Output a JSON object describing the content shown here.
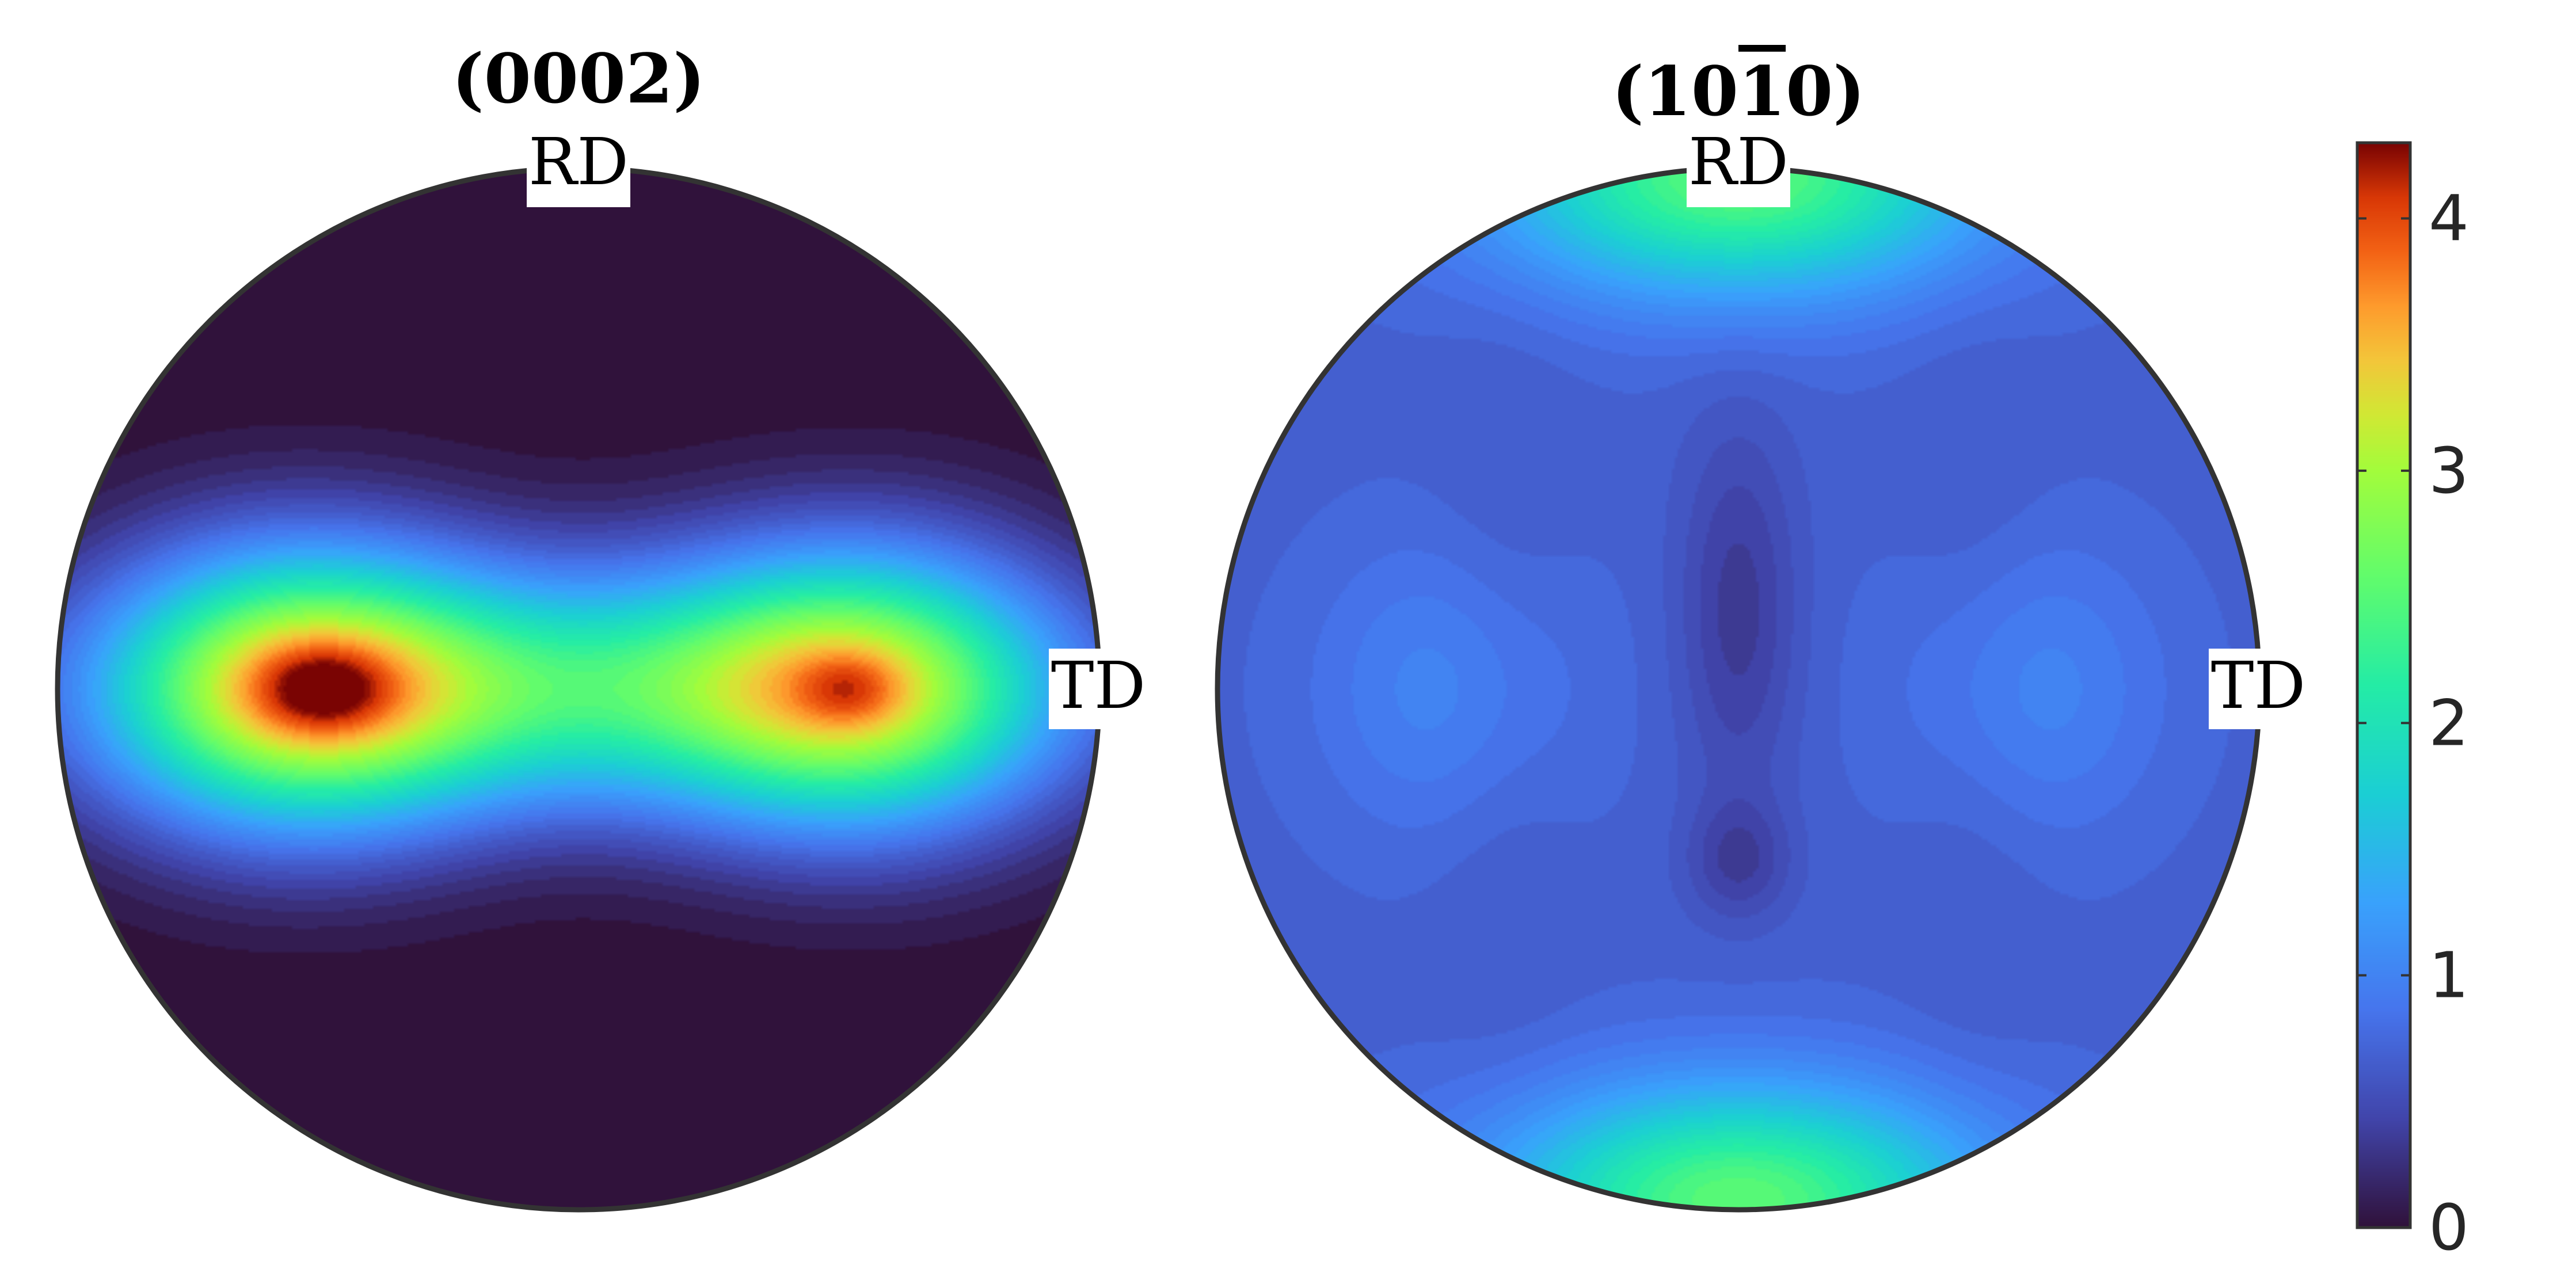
{
  "chart_data": [
    {
      "type": "heatmap",
      "title": "(0002)",
      "title_base": "0002",
      "title_overbar_digits": [],
      "direction_labels": {
        "top": "RD",
        "right": "TD"
      },
      "value_range": [
        0,
        4.3
      ],
      "blobs": [
        {
          "x": -0.54,
          "y": 0.0,
          "sx": 0.26,
          "sy": 0.19,
          "v": 2.7
        },
        {
          "x": 0.54,
          "y": 0.0,
          "sx": 0.26,
          "sy": 0.19,
          "v": 2.45
        },
        {
          "x": 0.0,
          "y": 0.0,
          "sx": 0.55,
          "sy": 0.16,
          "v": 1.95
        },
        {
          "x": -0.49,
          "y": 0.0,
          "sx": 0.09,
          "sy": 0.06,
          "v": 0.7
        },
        {
          "x": 0.52,
          "y": 0.0,
          "sx": 0.07,
          "sy": 0.05,
          "v": 0.5
        }
      ]
    },
    {
      "type": "heatmap",
      "title": "(10̅ 10)",
      "title_base": "1010",
      "title_overbar_digits": [
        2
      ],
      "direction_labels": {
        "top": "RD",
        "right": "TD"
      },
      "value_range": [
        0,
        4.3
      ],
      "base_value": 0.72,
      "blobs": [
        {
          "x": 0.0,
          "y": 0.98,
          "sx": 0.32,
          "sy": 0.15,
          "v": 1.85
        },
        {
          "x": 0.0,
          "y": -0.98,
          "sx": 0.32,
          "sy": 0.15,
          "v": 1.85
        },
        {
          "x": -0.55,
          "y": 0.0,
          "sx": 0.18,
          "sy": 0.2,
          "v": 0.35
        },
        {
          "x": 0.55,
          "y": 0.0,
          "sx": 0.18,
          "sy": 0.2,
          "v": 0.35
        },
        {
          "x": 0.0,
          "y": 0.15,
          "sx": 0.08,
          "sy": 0.25,
          "v": -0.35
        },
        {
          "x": 0.0,
          "y": -0.33,
          "sx": 0.07,
          "sy": 0.08,
          "v": -0.3
        },
        {
          "x": -0.45,
          "y": 0.0,
          "sx": 0.1,
          "sy": 0.5,
          "v": -0.1
        },
        {
          "x": 0.45,
          "y": 0.0,
          "sx": 0.1,
          "sy": 0.5,
          "v": -0.1
        }
      ]
    }
  ],
  "colorbar": {
    "min": 0,
    "max": 4.3,
    "ticks": [
      0,
      1,
      2,
      3,
      4
    ],
    "tick_labels": [
      "0",
      "1",
      "2",
      "3",
      "4"
    ],
    "colormap": "turbo"
  }
}
